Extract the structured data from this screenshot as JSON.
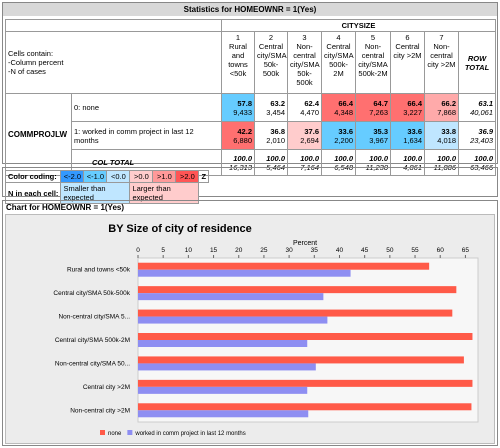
{
  "header": {
    "title": "Statistics for HOMEOWNR = 1(Yes)"
  },
  "table": {
    "col_variable": "CITYSIZE",
    "cells_contain": [
      "Cells contain:",
      "-Column percent",
      "-N of cases"
    ],
    "columns": [
      {
        "code": "1",
        "label": "Rural and towns <50k"
      },
      {
        "code": "2",
        "label": "Central city/SMA 50k-500k"
      },
      {
        "code": "3",
        "label": "Non-central city/SMA 50k-500k"
      },
      {
        "code": "4",
        "label": "Central city/SMA 500k-2M"
      },
      {
        "code": "5",
        "label": "Non-central city/SMA 500k-2M"
      },
      {
        "code": "6",
        "label": "Central city >2M"
      },
      {
        "code": "7",
        "label": "Non-central city >2M"
      }
    ],
    "row_total_label": "ROW TOTAL",
    "row_variable": "COMMPROJLW",
    "rows": [
      {
        "label": "0: none",
        "cells": [
          {
            "pct": "57.8",
            "n": "9,433",
            "color": "#66ccff"
          },
          {
            "pct": "63.2",
            "n": "3,454"
          },
          {
            "pct": "62.4",
            "n": "4,470"
          },
          {
            "pct": "66.4",
            "n": "4,348",
            "color": "#ff7070"
          },
          {
            "pct": "64.7",
            "n": "7,263",
            "color": "#ff7070"
          },
          {
            "pct": "66.4",
            "n": "3,227",
            "color": "#ff7070"
          },
          {
            "pct": "66.2",
            "n": "7,868",
            "color": "#ffaaaa"
          },
          {
            "pct": "63.1",
            "n": "40,061"
          }
        ]
      },
      {
        "label": "1: worked in comm project in last 12 months",
        "cells": [
          {
            "pct": "42.2",
            "n": "6,880",
            "color": "#ff7070"
          },
          {
            "pct": "36.8",
            "n": "2,010"
          },
          {
            "pct": "37.6",
            "n": "2,694",
            "color": "#ffcccc"
          },
          {
            "pct": "33.6",
            "n": "2,200",
            "color": "#66ccff"
          },
          {
            "pct": "35.3",
            "n": "3,967",
            "color": "#66ccff"
          },
          {
            "pct": "33.6",
            "n": "1,634",
            "color": "#66ccff"
          },
          {
            "pct": "33.8",
            "n": "4,018",
            "color": "#bfe6ff"
          },
          {
            "pct": "36.9",
            "n": "23,403"
          }
        ]
      }
    ],
    "col_total": {
      "label": "COL TOTAL",
      "cells": [
        {
          "pct": "100.0",
          "n": "16,313"
        },
        {
          "pct": "100.0",
          "n": "5,464"
        },
        {
          "pct": "100.0",
          "n": "7,164"
        },
        {
          "pct": "100.0",
          "n": "6,548"
        },
        {
          "pct": "100.0",
          "n": "11,230"
        },
        {
          "pct": "100.0",
          "n": "4,861"
        },
        {
          "pct": "100.0",
          "n": "11,886"
        },
        {
          "pct": "100.0",
          "n": "63,466"
        }
      ]
    }
  },
  "color_coding": {
    "label": "Color coding:",
    "bins": [
      {
        "label": "<-2.0",
        "color": "#3399ff"
      },
      {
        "label": "<-1.0",
        "color": "#66ccff"
      },
      {
        "label": "<0.0",
        "color": "#bfe6ff"
      },
      {
        "label": ">0.0",
        "color": "#ffcccc"
      },
      {
        "label": ">1.0",
        "color": "#ff9999"
      },
      {
        "label": ">2.0",
        "color": "#ff5555"
      }
    ],
    "z": "Z",
    "n_label": "N in each cell:",
    "smaller": {
      "label": "Smaller than expected",
      "color": "#bfe6ff"
    },
    "larger": {
      "label": "Larger than expected",
      "color": "#ffcccc"
    }
  },
  "chart_header": "Chart for HOMEOWNR = 1(Yes)",
  "chart_data": {
    "type": "hbar",
    "title": "BY Size of city of residence",
    "xlabel": "Percent",
    "categories": [
      "Rural and towns <50k",
      "Central city/SMA 50k-500k",
      "Non-central city/SMA 5...",
      "Central city/SMA 500k-2M",
      "Non-central city/SMA 50...",
      "Central city >2M",
      "Non-central city >2M"
    ],
    "series": [
      {
        "name": "none",
        "color": "#ff5a48",
        "values": [
          57.8,
          63.2,
          62.4,
          66.4,
          64.7,
          66.4,
          66.2
        ]
      },
      {
        "name": "worked in comm project in last 12 months",
        "color": "#8e8ef2",
        "values": [
          42.2,
          36.8,
          37.6,
          33.6,
          35.3,
          33.6,
          33.8
        ]
      }
    ],
    "xlim": [
      0,
      67.5
    ],
    "xticks": [
      0,
      5,
      10,
      15,
      20,
      25,
      30,
      35,
      40,
      45,
      50,
      55,
      60,
      65
    ],
    "legend": "bottom"
  }
}
